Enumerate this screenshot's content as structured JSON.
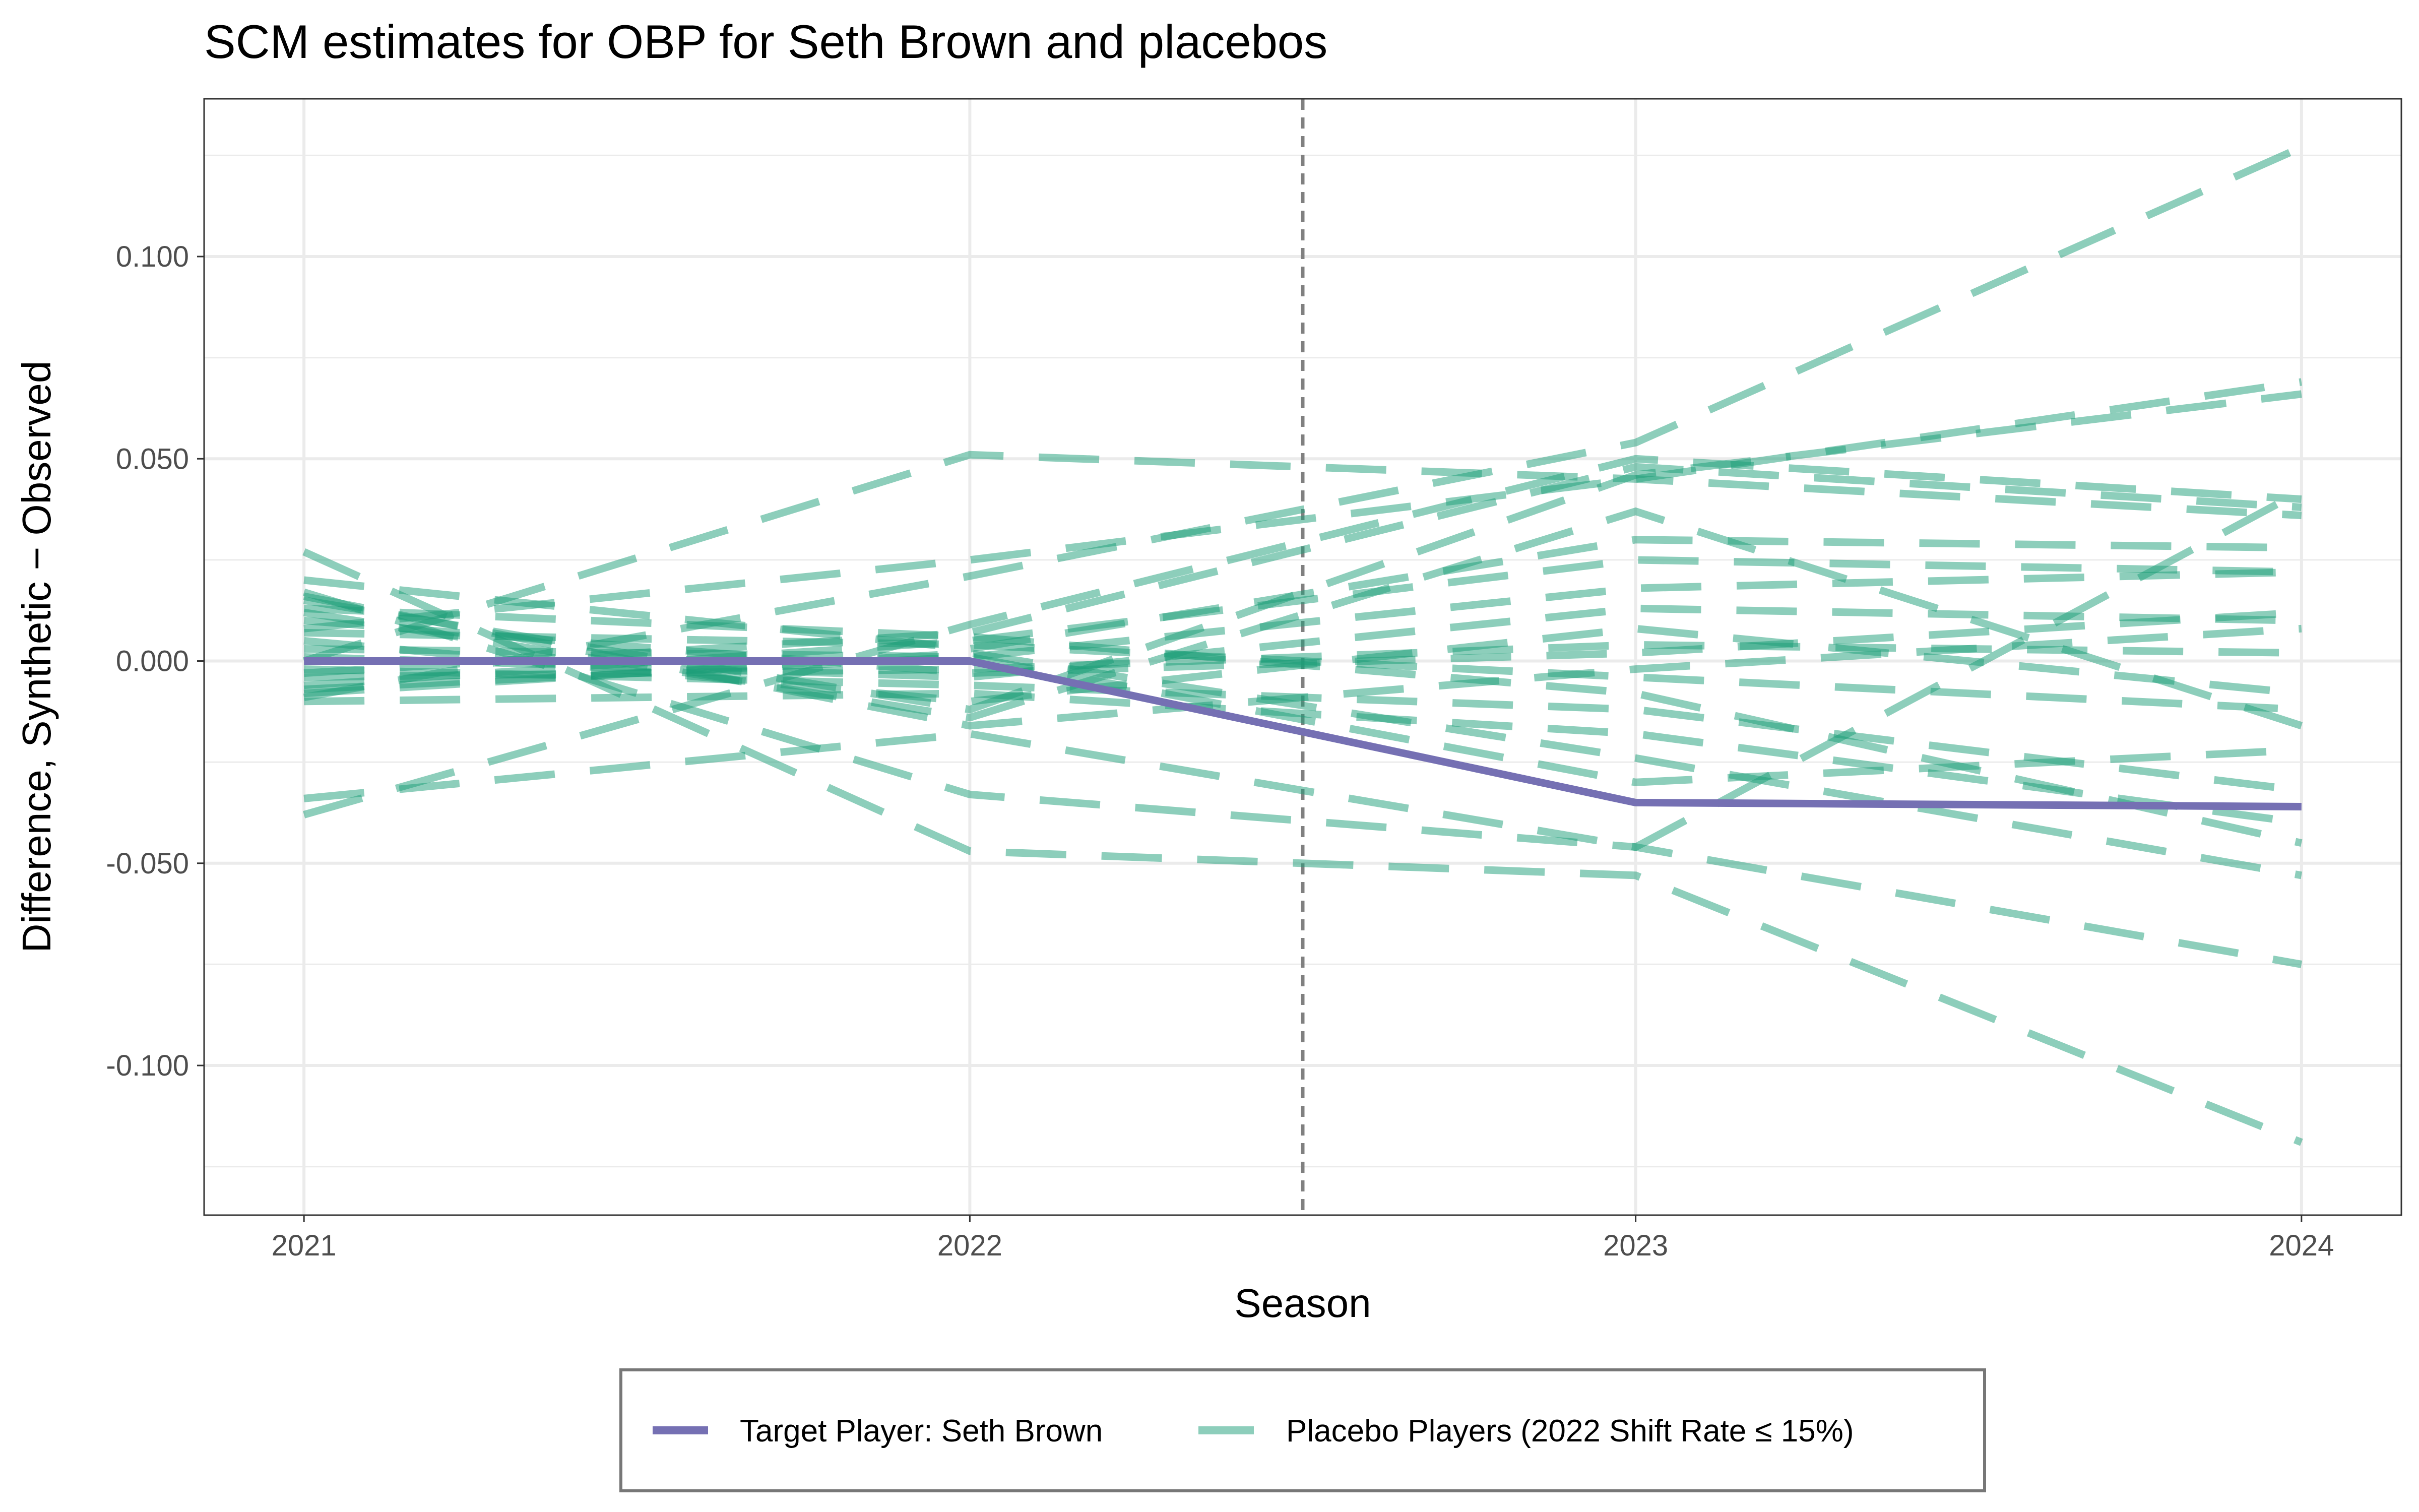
{
  "chart_data": {
    "type": "line",
    "title": "SCM estimates for OBP for Seth Brown and placebos",
    "xlabel": "Season",
    "ylabel": "Difference, Synthetic − Observed",
    "x": [
      2021,
      2022,
      2023,
      2024
    ],
    "x_tick_labels": [
      "2021",
      "2022",
      "2023",
      "2024"
    ],
    "xlim": [
      2020.85,
      2024.15
    ],
    "ylim": [
      -0.137,
      0.139
    ],
    "y_ticks": [
      0.1,
      0.05,
      0.0,
      -0.05,
      -0.1
    ],
    "y_tick_labels": [
      "0.100",
      "0.050",
      "0.000",
      "-0.050",
      "-0.100"
    ],
    "grid": true,
    "treatment_line": {
      "x": 2022.5,
      "style": "dashed",
      "color": "#808080"
    },
    "legend": {
      "position": "bottom",
      "entries": [
        {
          "label": "Target Player: Seth Brown",
          "color": "#7570b3",
          "style": "solid"
        },
        {
          "label": "Placebo Players (2022 Shift Rate ≤ 15%)",
          "color": "#1b9e77",
          "style": "dashed"
        }
      ]
    },
    "series": [
      {
        "name": "Target Player: Seth Brown",
        "role": "target",
        "color": "#7570b3",
        "values": [
          0.0,
          0.0,
          -0.035,
          -0.036
        ]
      },
      {
        "role": "placebo",
        "color": "#1b9e77",
        "values": [
          0.027,
          -0.047,
          -0.053,
          -0.119
        ]
      },
      {
        "role": "placebo",
        "color": "#1b9e77",
        "values": [
          0.0,
          0.051,
          0.045,
          0.036
        ]
      },
      {
        "role": "placebo",
        "color": "#1b9e77",
        "values": [
          -0.009,
          0.021,
          0.054,
          0.127
        ]
      },
      {
        "role": "placebo",
        "color": "#1b9e77",
        "values": [
          -0.038,
          0.009,
          0.05,
          0.04
        ]
      },
      {
        "role": "placebo",
        "color": "#1b9e77",
        "values": [
          -0.034,
          -0.018,
          -0.046,
          0.042
        ]
      },
      {
        "role": "placebo",
        "color": "#1b9e77",
        "values": [
          0.017,
          -0.033,
          -0.046,
          -0.075
        ]
      },
      {
        "role": "placebo",
        "color": "#1b9e77",
        "values": [
          0.008,
          0.025,
          0.045,
          0.069
        ]
      },
      {
        "role": "placebo",
        "color": "#1b9e77",
        "values": [
          0.015,
          -0.012,
          0.046,
          0.066
        ]
      },
      {
        "role": "placebo",
        "color": "#1b9e77",
        "values": [
          0.02,
          0.003,
          0.03,
          0.028
        ]
      },
      {
        "role": "placebo",
        "color": "#1b9e77",
        "values": [
          -0.003,
          0.007,
          0.048,
          0.038
        ]
      },
      {
        "role": "placebo",
        "color": "#1b9e77",
        "values": [
          0.012,
          -0.014,
          0.037,
          -0.016
        ]
      },
      {
        "role": "placebo",
        "color": "#1b9e77",
        "values": [
          -0.006,
          0.005,
          0.025,
          0.022
        ]
      },
      {
        "role": "placebo",
        "color": "#1b9e77",
        "values": [
          0.005,
          -0.01,
          0.008,
          -0.008
        ]
      },
      {
        "role": "placebo",
        "color": "#1b9e77",
        "values": [
          -0.002,
          -0.006,
          -0.012,
          -0.032
        ]
      },
      {
        "role": "placebo",
        "color": "#1b9e77",
        "values": [
          0.01,
          -0.003,
          0.002,
          0.012
        ]
      },
      {
        "role": "placebo",
        "color": "#1b9e77",
        "values": [
          -0.008,
          0.002,
          -0.024,
          -0.053
        ]
      },
      {
        "role": "placebo",
        "color": "#1b9e77",
        "values": [
          0.003,
          0.001,
          0.018,
          0.022
        ]
      },
      {
        "role": "placebo",
        "color": "#1b9e77",
        "values": [
          -0.01,
          -0.008,
          -0.018,
          -0.04
        ]
      },
      {
        "role": "placebo",
        "color": "#1b9e77",
        "values": [
          0.007,
          0.004,
          -0.004,
          -0.012
        ]
      },
      {
        "role": "placebo",
        "color": "#1b9e77",
        "values": [
          -0.004,
          -0.002,
          0.004,
          0.002
        ]
      },
      {
        "role": "placebo",
        "color": "#1b9e77",
        "values": [
          0.013,
          0.006,
          -0.008,
          -0.045
        ]
      },
      {
        "role": "placebo",
        "color": "#1b9e77",
        "values": [
          0.001,
          -0.004,
          0.013,
          0.01
        ]
      },
      {
        "role": "placebo",
        "color": "#1b9e77",
        "values": [
          -0.007,
          0.001,
          -0.03,
          -0.022
        ]
      },
      {
        "role": "placebo",
        "color": "#1b9e77",
        "values": [
          0.016,
          -0.016,
          -0.002,
          0.008
        ]
      }
    ]
  }
}
